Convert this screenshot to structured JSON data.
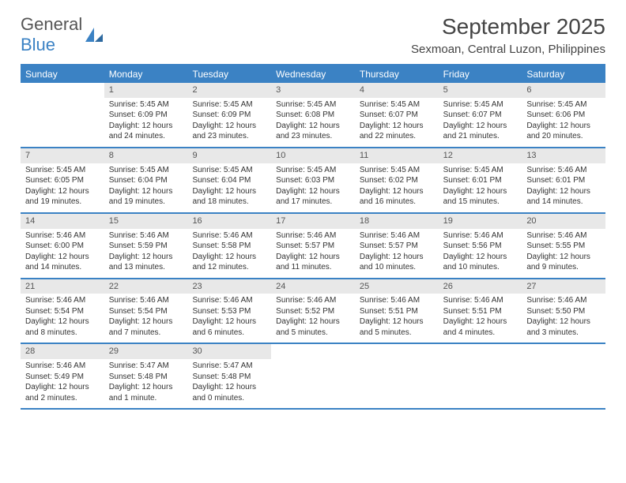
{
  "logo": {
    "text1": "General",
    "text2": "Blue",
    "icon_color": "#3b82c4"
  },
  "title": "September 2025",
  "location": "Sexmoan, Central Luzon, Philippines",
  "colors": {
    "header_bar": "#3b82c4",
    "header_text": "#ffffff",
    "daynum_bg": "#e8e8e8",
    "daynum_text": "#555555",
    "body_text": "#333333",
    "title_text": "#444444",
    "background": "#ffffff"
  },
  "typography": {
    "title_fontsize": 28,
    "location_fontsize": 15,
    "dow_fontsize": 12,
    "daynum_fontsize": 11,
    "body_fontsize": 10,
    "font_family": "Arial"
  },
  "calendar": {
    "type": "table",
    "days_of_week": [
      "Sunday",
      "Monday",
      "Tuesday",
      "Wednesday",
      "Thursday",
      "Friday",
      "Saturday"
    ],
    "weeks": [
      [
        null,
        {
          "n": "1",
          "sr": "Sunrise: 5:45 AM",
          "ss": "Sunset: 6:09 PM",
          "d1": "Daylight: 12 hours",
          "d2": "and 24 minutes."
        },
        {
          "n": "2",
          "sr": "Sunrise: 5:45 AM",
          "ss": "Sunset: 6:09 PM",
          "d1": "Daylight: 12 hours",
          "d2": "and 23 minutes."
        },
        {
          "n": "3",
          "sr": "Sunrise: 5:45 AM",
          "ss": "Sunset: 6:08 PM",
          "d1": "Daylight: 12 hours",
          "d2": "and 23 minutes."
        },
        {
          "n": "4",
          "sr": "Sunrise: 5:45 AM",
          "ss": "Sunset: 6:07 PM",
          "d1": "Daylight: 12 hours",
          "d2": "and 22 minutes."
        },
        {
          "n": "5",
          "sr": "Sunrise: 5:45 AM",
          "ss": "Sunset: 6:07 PM",
          "d1": "Daylight: 12 hours",
          "d2": "and 21 minutes."
        },
        {
          "n": "6",
          "sr": "Sunrise: 5:45 AM",
          "ss": "Sunset: 6:06 PM",
          "d1": "Daylight: 12 hours",
          "d2": "and 20 minutes."
        }
      ],
      [
        {
          "n": "7",
          "sr": "Sunrise: 5:45 AM",
          "ss": "Sunset: 6:05 PM",
          "d1": "Daylight: 12 hours",
          "d2": "and 19 minutes."
        },
        {
          "n": "8",
          "sr": "Sunrise: 5:45 AM",
          "ss": "Sunset: 6:04 PM",
          "d1": "Daylight: 12 hours",
          "d2": "and 19 minutes."
        },
        {
          "n": "9",
          "sr": "Sunrise: 5:45 AM",
          "ss": "Sunset: 6:04 PM",
          "d1": "Daylight: 12 hours",
          "d2": "and 18 minutes."
        },
        {
          "n": "10",
          "sr": "Sunrise: 5:45 AM",
          "ss": "Sunset: 6:03 PM",
          "d1": "Daylight: 12 hours",
          "d2": "and 17 minutes."
        },
        {
          "n": "11",
          "sr": "Sunrise: 5:45 AM",
          "ss": "Sunset: 6:02 PM",
          "d1": "Daylight: 12 hours",
          "d2": "and 16 minutes."
        },
        {
          "n": "12",
          "sr": "Sunrise: 5:45 AM",
          "ss": "Sunset: 6:01 PM",
          "d1": "Daylight: 12 hours",
          "d2": "and 15 minutes."
        },
        {
          "n": "13",
          "sr": "Sunrise: 5:46 AM",
          "ss": "Sunset: 6:01 PM",
          "d1": "Daylight: 12 hours",
          "d2": "and 14 minutes."
        }
      ],
      [
        {
          "n": "14",
          "sr": "Sunrise: 5:46 AM",
          "ss": "Sunset: 6:00 PM",
          "d1": "Daylight: 12 hours",
          "d2": "and 14 minutes."
        },
        {
          "n": "15",
          "sr": "Sunrise: 5:46 AM",
          "ss": "Sunset: 5:59 PM",
          "d1": "Daylight: 12 hours",
          "d2": "and 13 minutes."
        },
        {
          "n": "16",
          "sr": "Sunrise: 5:46 AM",
          "ss": "Sunset: 5:58 PM",
          "d1": "Daylight: 12 hours",
          "d2": "and 12 minutes."
        },
        {
          "n": "17",
          "sr": "Sunrise: 5:46 AM",
          "ss": "Sunset: 5:57 PM",
          "d1": "Daylight: 12 hours",
          "d2": "and 11 minutes."
        },
        {
          "n": "18",
          "sr": "Sunrise: 5:46 AM",
          "ss": "Sunset: 5:57 PM",
          "d1": "Daylight: 12 hours",
          "d2": "and 10 minutes."
        },
        {
          "n": "19",
          "sr": "Sunrise: 5:46 AM",
          "ss": "Sunset: 5:56 PM",
          "d1": "Daylight: 12 hours",
          "d2": "and 10 minutes."
        },
        {
          "n": "20",
          "sr": "Sunrise: 5:46 AM",
          "ss": "Sunset: 5:55 PM",
          "d1": "Daylight: 12 hours",
          "d2": "and 9 minutes."
        }
      ],
      [
        {
          "n": "21",
          "sr": "Sunrise: 5:46 AM",
          "ss": "Sunset: 5:54 PM",
          "d1": "Daylight: 12 hours",
          "d2": "and 8 minutes."
        },
        {
          "n": "22",
          "sr": "Sunrise: 5:46 AM",
          "ss": "Sunset: 5:54 PM",
          "d1": "Daylight: 12 hours",
          "d2": "and 7 minutes."
        },
        {
          "n": "23",
          "sr": "Sunrise: 5:46 AM",
          "ss": "Sunset: 5:53 PM",
          "d1": "Daylight: 12 hours",
          "d2": "and 6 minutes."
        },
        {
          "n": "24",
          "sr": "Sunrise: 5:46 AM",
          "ss": "Sunset: 5:52 PM",
          "d1": "Daylight: 12 hours",
          "d2": "and 5 minutes."
        },
        {
          "n": "25",
          "sr": "Sunrise: 5:46 AM",
          "ss": "Sunset: 5:51 PM",
          "d1": "Daylight: 12 hours",
          "d2": "and 5 minutes."
        },
        {
          "n": "26",
          "sr": "Sunrise: 5:46 AM",
          "ss": "Sunset: 5:51 PM",
          "d1": "Daylight: 12 hours",
          "d2": "and 4 minutes."
        },
        {
          "n": "27",
          "sr": "Sunrise: 5:46 AM",
          "ss": "Sunset: 5:50 PM",
          "d1": "Daylight: 12 hours",
          "d2": "and 3 minutes."
        }
      ],
      [
        {
          "n": "28",
          "sr": "Sunrise: 5:46 AM",
          "ss": "Sunset: 5:49 PM",
          "d1": "Daylight: 12 hours",
          "d2": "and 2 minutes."
        },
        {
          "n": "29",
          "sr": "Sunrise: 5:47 AM",
          "ss": "Sunset: 5:48 PM",
          "d1": "Daylight: 12 hours",
          "d2": "and 1 minute."
        },
        {
          "n": "30",
          "sr": "Sunrise: 5:47 AM",
          "ss": "Sunset: 5:48 PM",
          "d1": "Daylight: 12 hours",
          "d2": "and 0 minutes."
        },
        null,
        null,
        null,
        null
      ]
    ]
  }
}
